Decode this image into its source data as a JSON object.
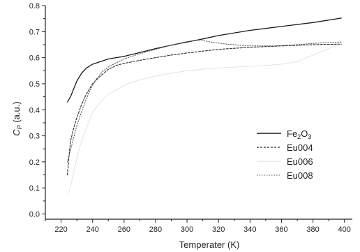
{
  "chart_data": {
    "type": "line",
    "xlabel": "Temperater (K)",
    "ylabel": "C",
    "ylabel_sub": "P",
    "ylabel_unit": " (a.u.)",
    "xlim": [
      210,
      405
    ],
    "ylim": [
      -0.02,
      0.8
    ],
    "xticks": [
      "220",
      "240",
      "260",
      "280",
      "300",
      "320",
      "340",
      "360",
      "380",
      "400"
    ],
    "yticks": [
      "0.0",
      "0.1",
      "0.2",
      "0.3",
      "0.4",
      "0.5",
      "0.6",
      "0.7",
      "0.8"
    ],
    "grid": false,
    "legend_position": "center-right",
    "series": [
      {
        "name": "Fe2O3",
        "name_main": "Fe",
        "name_sub1": "2",
        "name_mid": "O",
        "name_sub2": "3",
        "color": "#1a1a1a",
        "dash": "",
        "width": 1.3,
        "x": [
          224,
          226,
          228,
          230,
          233,
          236,
          240,
          245,
          250,
          255,
          260,
          270,
          280,
          290,
          300,
          310,
          320,
          340,
          360,
          380,
          398
        ],
        "y": [
          0.43,
          0.45,
          0.48,
          0.51,
          0.54,
          0.56,
          0.575,
          0.585,
          0.595,
          0.6,
          0.605,
          0.62,
          0.635,
          0.648,
          0.66,
          0.672,
          0.685,
          0.705,
          0.72,
          0.735,
          0.752
        ]
      },
      {
        "name": "Eu004",
        "color": "#2a2a2a",
        "dash": "3,2",
        "width": 1.1,
        "x": [
          224,
          225,
          226,
          228,
          230,
          233,
          236,
          240,
          245,
          250,
          255,
          260,
          270,
          280,
          290,
          300,
          310,
          320,
          340,
          360,
          380,
          398
        ],
        "y": [
          0.15,
          0.22,
          0.28,
          0.33,
          0.37,
          0.42,
          0.46,
          0.5,
          0.53,
          0.555,
          0.57,
          0.578,
          0.59,
          0.6,
          0.61,
          0.618,
          0.625,
          0.632,
          0.64,
          0.645,
          0.65,
          0.652
        ]
      },
      {
        "name": "Eu006",
        "color": "#dddddd",
        "dash": "",
        "width": 0.8,
        "x": [
          225,
          228,
          232,
          236,
          240,
          245,
          250,
          256,
          262,
          270,
          280,
          290,
          300,
          310,
          320,
          330,
          340,
          350,
          360,
          370,
          380,
          390,
          397
        ],
        "y": [
          0.08,
          0.16,
          0.26,
          0.33,
          0.39,
          0.43,
          0.46,
          0.48,
          0.5,
          0.515,
          0.53,
          0.54,
          0.55,
          0.556,
          0.56,
          0.564,
          0.567,
          0.57,
          0.575,
          0.585,
          0.61,
          0.635,
          0.65
        ]
      },
      {
        "name": "Eu008",
        "color": "#555555",
        "dash": "1.5,2",
        "width": 1.0,
        "x": [
          224,
          227,
          230,
          234,
          238,
          242,
          246,
          250,
          255,
          260,
          270,
          280,
          290,
          300,
          308,
          315,
          325,
          340,
          355,
          370,
          385,
          398
        ],
        "y": [
          0.2,
          0.27,
          0.34,
          0.41,
          0.47,
          0.515,
          0.545,
          0.565,
          0.58,
          0.595,
          0.615,
          0.632,
          0.648,
          0.662,
          0.668,
          0.66,
          0.652,
          0.645,
          0.645,
          0.65,
          0.657,
          0.66
        ]
      }
    ]
  }
}
